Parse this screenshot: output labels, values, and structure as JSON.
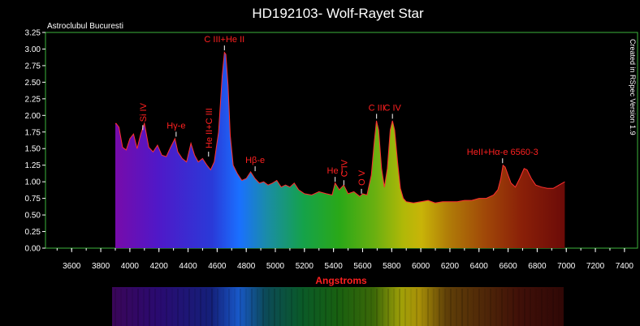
{
  "chart_data": {
    "type": "area",
    "title": "HD192103- Wolf-Rayet Star",
    "subtitle": "Astroclubul Bucuresti",
    "side_note": "Created in RSpec Version 1.9",
    "xlabel": "Angstroms",
    "ylabel": "",
    "xlim": [
      3420,
      7490
    ],
    "ylim": [
      0,
      3.25
    ],
    "x_ticks": [
      3600,
      3800,
      4000,
      4200,
      4400,
      4600,
      4800,
      5000,
      5200,
      5400,
      5600,
      5800,
      6000,
      6200,
      6400,
      6600,
      6800,
      7000,
      7200,
      7400
    ],
    "y_ticks": [
      "0.00",
      "0.25",
      "0.50",
      "0.75",
      "1.00",
      "1.25",
      "1.50",
      "1.75",
      "2.00",
      "2.25",
      "2.50",
      "2.75",
      "3.00",
      "3.25"
    ],
    "grid": false,
    "colors": {
      "plot_border": "#3cb43c",
      "line": "#ff3030",
      "label": "#ff2020",
      "marker": "#ffffff"
    },
    "series": [
      {
        "x": [
          3900,
          3905,
          3925,
          3950,
          3975,
          4000,
          4025,
          4050,
          4075,
          4100,
          4130,
          4160,
          4190,
          4220,
          4250,
          4280,
          4310,
          4330,
          4360,
          4390,
          4420,
          4445,
          4470,
          4500,
          4530,
          4555,
          4580,
          4610,
          4635,
          4650,
          4660,
          4675,
          4690,
          4710,
          4740,
          4770,
          4800,
          4830,
          4860,
          4890,
          4920,
          4950,
          4980,
          5010,
          5040,
          5070,
          5100,
          5130,
          5160,
          5200,
          5250,
          5300,
          5350,
          5390,
          5411,
          5440,
          5470,
          5500,
          5540,
          5580,
          5600,
          5630,
          5660,
          5680,
          5695,
          5710,
          5730,
          5750,
          5770,
          5790,
          5805,
          5820,
          5840,
          5860,
          5880,
          5900,
          5950,
          6000,
          6050,
          6100,
          6150,
          6200,
          6250,
          6300,
          6350,
          6400,
          6450,
          6500,
          6530,
          6550,
          6565,
          6580,
          6600,
          6620,
          6650,
          6680,
          6710,
          6730,
          6760,
          6790,
          6830,
          6870,
          6910,
          6950,
          6990
        ],
        "values": [
          1.87,
          1.88,
          1.82,
          1.52,
          1.48,
          1.65,
          1.72,
          1.5,
          1.72,
          1.88,
          1.52,
          1.45,
          1.55,
          1.4,
          1.38,
          1.52,
          1.65,
          1.45,
          1.35,
          1.3,
          1.58,
          1.4,
          1.3,
          1.35,
          1.25,
          1.18,
          1.3,
          1.75,
          2.6,
          2.95,
          2.92,
          2.45,
          1.7,
          1.25,
          1.12,
          1.02,
          1.05,
          1.15,
          1.05,
          0.98,
          1.0,
          0.95,
          0.98,
          1.02,
          0.92,
          0.95,
          0.92,
          0.98,
          0.88,
          0.82,
          0.8,
          0.85,
          0.82,
          0.8,
          0.98,
          0.88,
          0.95,
          0.82,
          0.85,
          0.78,
          0.82,
          0.8,
          1.1,
          1.6,
          1.92,
          1.78,
          1.2,
          0.92,
          1.2,
          1.78,
          1.92,
          1.78,
          1.3,
          0.9,
          0.75,
          0.7,
          0.68,
          0.7,
          0.72,
          0.68,
          0.7,
          0.7,
          0.7,
          0.72,
          0.72,
          0.75,
          0.75,
          0.8,
          0.88,
          1.05,
          1.25,
          1.22,
          1.1,
          0.98,
          0.92,
          1.05,
          1.2,
          1.18,
          1.05,
          0.95,
          0.92,
          0.9,
          0.9,
          0.95,
          1.0
        ]
      }
    ],
    "annotations": [
      {
        "text": "C III+He II",
        "x": 4650,
        "y": 2.98,
        "orient": "horizontal"
      },
      {
        "text": "Si IV",
        "x": 4089,
        "y": 1.78,
        "orient": "vertical"
      },
      {
        "text": "Hγ-e",
        "x": 4318,
        "y": 1.68,
        "orient": "horizontal"
      },
      {
        "text": "He II+C III",
        "x": 4541,
        "y": 1.38,
        "orient": "vertical"
      },
      {
        "text": "Hβ-e",
        "x": 4861,
        "y": 1.16,
        "orient": "horizontal"
      },
      {
        "text": "He I",
        "x": 5411,
        "y": 1.0,
        "orient": "horizontal"
      },
      {
        "text": "C IV",
        "x": 5471,
        "y": 0.95,
        "orient": "vertical"
      },
      {
        "text": "O V",
        "x": 5592,
        "y": 0.82,
        "orient": "vertical"
      },
      {
        "text": "C III",
        "x": 5696,
        "y": 1.95,
        "orient": "horizontal"
      },
      {
        "text": "C IV",
        "x": 5805,
        "y": 1.95,
        "orient": "horizontal"
      },
      {
        "text": "HeII+Hα-e 6560-3",
        "x": 6562,
        "y": 1.28,
        "orient": "horizontal"
      }
    ]
  }
}
